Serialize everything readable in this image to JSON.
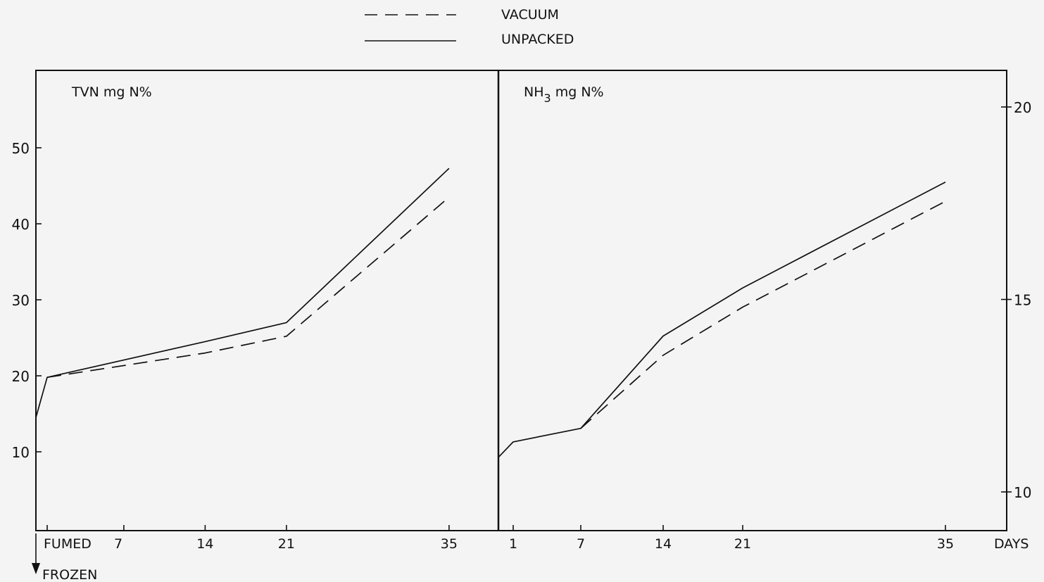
{
  "legend": {
    "items": [
      {
        "label": "VACUUM",
        "style": "dashed"
      },
      {
        "label": "UNPACKED",
        "style": "solid"
      }
    ]
  },
  "chart_data": [
    {
      "type": "line",
      "title": "TVN mg N%",
      "x": [
        "FUMED",
        7,
        14,
        21,
        35
      ],
      "x_tick_labels": [
        "FUMED",
        "7",
        "14",
        "21",
        "35"
      ],
      "x_note": "FROZEN",
      "y_ticks": [
        10,
        20,
        30,
        40,
        50
      ],
      "ylim": [
        0,
        60
      ],
      "series": [
        {
          "name": "UNPACKED",
          "style": "solid",
          "points": [
            [
              -0.6,
              14.5
            ],
            [
              0.4,
              19.8
            ],
            [
              14,
              24.5
            ],
            [
              21,
              27
            ],
            [
              35,
              47.3
            ]
          ]
        },
        {
          "name": "VACUUM",
          "style": "dashed",
          "points": [
            [
              0.4,
              19.8
            ],
            [
              14,
              23
            ],
            [
              21,
              25.2
            ],
            [
              35,
              43.5
            ]
          ]
        }
      ]
    },
    {
      "type": "line",
      "title_main": "NH",
      "title_sub": "3",
      "title_rest": " mg N%",
      "x": [
        1,
        7,
        14,
        21,
        35
      ],
      "x_tick_labels": [
        "1",
        "7",
        "14",
        "21",
        "35"
      ],
      "x_unit": "DAYS",
      "y_ticks": [
        10,
        15,
        20
      ],
      "ylim": [
        9,
        21
      ],
      "series": [
        {
          "name": "UNPACKED",
          "style": "solid",
          "points": [
            [
              0,
              10.9
            ],
            [
              1,
              11.3
            ],
            [
              7,
              11.65
            ],
            [
              14,
              14.05
            ],
            [
              21,
              15.3
            ],
            [
              35,
              18.05
            ]
          ]
        },
        {
          "name": "VACUUM",
          "style": "dashed",
          "points": [
            [
              7,
              11.65
            ],
            [
              14,
              13.55
            ],
            [
              21,
              14.8
            ],
            [
              35,
              17.55
            ]
          ]
        }
      ]
    }
  ]
}
